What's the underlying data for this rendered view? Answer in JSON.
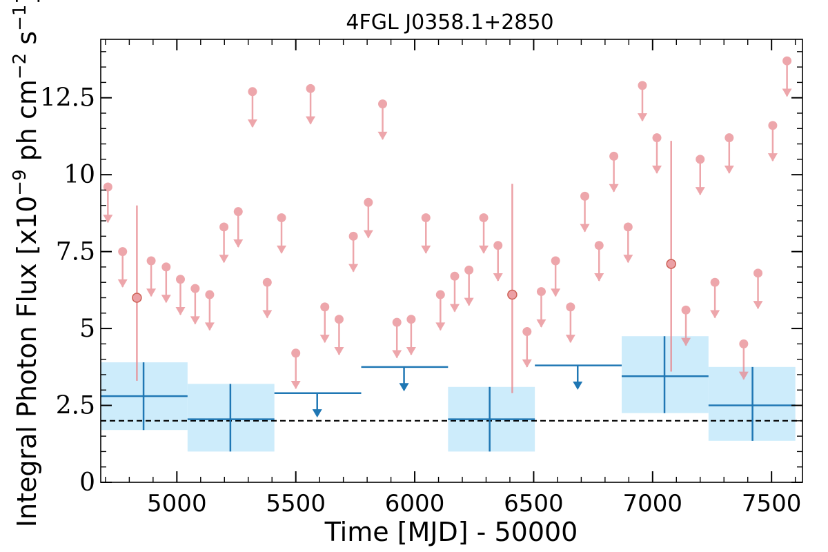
{
  "chart_data": {
    "type": "scatter",
    "title": "4FGL J0358.1+2850",
    "xlabel": "Time [MJD] - 50000",
    "ylabel": "Integral Photon Flux [x10",
    "ylabel_exp": "−9",
    "ylabel_mid": " ph cm",
    "ylabel_exp2": "−2",
    "ylabel_end": " s",
    "ylabel_exp3": "−1",
    "ylabel_close": "]",
    "xlim": [
      4680,
      7630
    ],
    "ylim": [
      0,
      14.4
    ],
    "xticks": [
      5000,
      5500,
      6000,
      6500,
      7000,
      7500
    ],
    "xtick_labels": [
      "5000",
      "5500",
      "6000",
      "6500",
      "7000",
      "7500"
    ],
    "yticks": [
      0,
      2.5,
      5,
      7.5,
      10,
      12.5
    ],
    "ytick_labels": [
      "0",
      "2.5",
      "5",
      "7.5",
      "10",
      "12.5"
    ],
    "reference_line": 2.0,
    "colors": {
      "short_bins": "#e8898f",
      "long_bins": "#1f77b4",
      "long_bins_band": "#cdecfb",
      "reference": "#000000"
    },
    "series": [
      {
        "bin": "short",
        "upper_limits": [
          {
            "x": 4710,
            "y": 9.6
          },
          {
            "x": 4772,
            "y": 7.5
          },
          {
            "x": 4892,
            "y": 7.2
          },
          {
            "x": 4955,
            "y": 7.0
          },
          {
            "x": 5015,
            "y": 6.6
          },
          {
            "x": 5077,
            "y": 6.3
          },
          {
            "x": 5138,
            "y": 6.1
          },
          {
            "x": 5198,
            "y": 8.3
          },
          {
            "x": 5258,
            "y": 8.8
          },
          {
            "x": 5318,
            "y": 12.7
          },
          {
            "x": 5380,
            "y": 6.5
          },
          {
            "x": 5440,
            "y": 8.6
          },
          {
            "x": 5500,
            "y": 4.2
          },
          {
            "x": 5562,
            "y": 12.8
          },
          {
            "x": 5622,
            "y": 5.7
          },
          {
            "x": 5682,
            "y": 5.3
          },
          {
            "x": 5742,
            "y": 8.0
          },
          {
            "x": 5805,
            "y": 9.1
          },
          {
            "x": 5865,
            "y": 12.3
          },
          {
            "x": 5925,
            "y": 5.2
          },
          {
            "x": 5985,
            "y": 5.3
          },
          {
            "x": 6047,
            "y": 8.6
          },
          {
            "x": 6108,
            "y": 6.1
          },
          {
            "x": 6168,
            "y": 6.7
          },
          {
            "x": 6228,
            "y": 6.9
          },
          {
            "x": 6290,
            "y": 8.6
          },
          {
            "x": 6350,
            "y": 7.7
          },
          {
            "x": 6472,
            "y": 4.9
          },
          {
            "x": 6532,
            "y": 6.2
          },
          {
            "x": 6592,
            "y": 7.2
          },
          {
            "x": 6655,
            "y": 5.7
          },
          {
            "x": 6715,
            "y": 9.3
          },
          {
            "x": 6775,
            "y": 7.7
          },
          {
            "x": 6837,
            "y": 10.6
          },
          {
            "x": 6897,
            "y": 8.3
          },
          {
            "x": 6957,
            "y": 12.9
          },
          {
            "x": 7018,
            "y": 11.2
          },
          {
            "x": 7140,
            "y": 5.6
          },
          {
            "x": 7200,
            "y": 10.5
          },
          {
            "x": 7262,
            "y": 6.5
          },
          {
            "x": 7322,
            "y": 11.2
          },
          {
            "x": 7383,
            "y": 4.5
          },
          {
            "x": 7443,
            "y": 6.8
          },
          {
            "x": 7505,
            "y": 11.6
          },
          {
            "x": 7565,
            "y": 13.7
          }
        ],
        "detections": [
          {
            "x": 4832,
            "y": 6.0,
            "y_low": 3.3,
            "y_high": 9.0
          },
          {
            "x": 6410,
            "y": 6.1,
            "y_low": 2.9,
            "y_high": 9.7
          },
          {
            "x": 7078,
            "y": 7.1,
            "y_low": 3.6,
            "y_high": 11.1
          }
        ]
      },
      {
        "bin": "long",
        "detections": [
          {
            "x": 4860,
            "x_low": 4680,
            "x_high": 5045,
            "y": 2.8,
            "y_low": 1.7,
            "y_high": 3.9
          },
          {
            "x": 5225,
            "x_low": 5045,
            "x_high": 5410,
            "y": 2.05,
            "y_low": 1.0,
            "y_high": 3.2
          },
          {
            "x": 6315,
            "x_low": 6140,
            "x_high": 6505,
            "y": 2.05,
            "y_low": 1.0,
            "y_high": 3.1
          },
          {
            "x": 7050,
            "x_low": 6870,
            "x_high": 7235,
            "y": 3.45,
            "y_low": 2.25,
            "y_high": 4.75
          },
          {
            "x": 7420,
            "x_low": 7235,
            "x_high": 7600,
            "y": 2.5,
            "y_low": 1.35,
            "y_high": 3.75
          }
        ],
        "upper_limits": [
          {
            "x": 5590,
            "x_low": 5410,
            "x_high": 5775,
            "y": 2.9
          },
          {
            "x": 5955,
            "x_low": 5775,
            "x_high": 6140,
            "y": 3.75
          },
          {
            "x": 6685,
            "x_low": 6505,
            "x_high": 6870,
            "y": 3.8
          }
        ]
      }
    ]
  }
}
